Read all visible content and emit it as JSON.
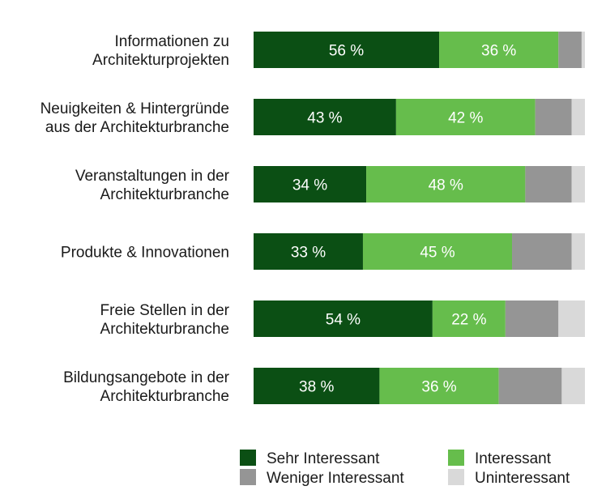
{
  "chart_data": {
    "type": "bar",
    "orientation": "horizontal",
    "stacked": true,
    "categories": [
      [
        "Informationen zu",
        "Architekturprojekten"
      ],
      [
        "Neuigkeiten & Hintergründe",
        "aus der Architekturbranche"
      ],
      [
        "Veranstaltungen in der",
        "Architekturbranche"
      ],
      [
        "Produkte & Innovationen"
      ],
      [
        "Freie Stellen in der",
        "Architekturbranche"
      ],
      [
        "Bildungsangebote in der",
        "Architekturbranche"
      ]
    ],
    "series": [
      {
        "name": "Sehr Interessant",
        "color": "#0b4f14",
        "values": [
          56,
          43,
          34,
          33,
          54,
          38
        ],
        "show_labels": true
      },
      {
        "name": "Interessant",
        "color": "#66bd4c",
        "values": [
          36,
          42,
          48,
          45,
          22,
          36
        ],
        "show_labels": true
      },
      {
        "name": "Weniger Interessant",
        "color": "#959595",
        "values": [
          7,
          11,
          14,
          18,
          16,
          19
        ],
        "show_labels": false
      },
      {
        "name": "Uninteressant",
        "color": "#d9d9d9",
        "values": [
          1,
          4,
          4,
          4,
          8,
          7
        ],
        "show_labels": false
      }
    ],
    "value_suffix": " %",
    "xlim": [
      0,
      100
    ],
    "grid": false,
    "legend_position": "bottom"
  }
}
